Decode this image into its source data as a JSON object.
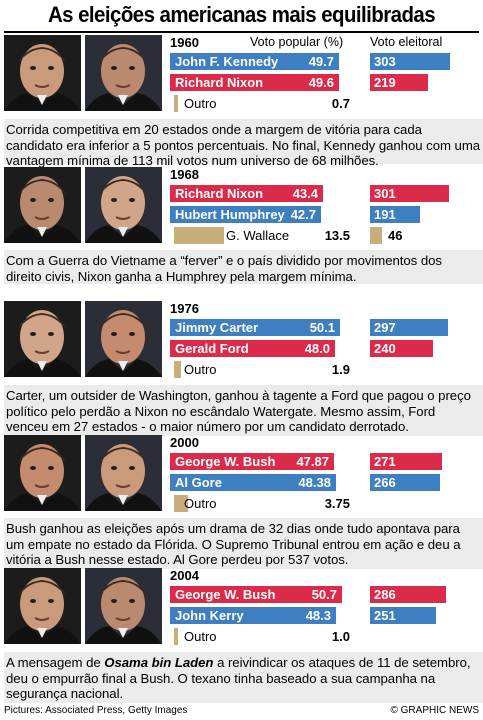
{
  "title": "As eleições americanas mais equilibradas",
  "headers": {
    "popular": "Voto popular (%)",
    "electoral": "Voto eleitoral"
  },
  "colors": {
    "blue": "#3e7fc1",
    "red": "#dc2a4a",
    "tan": "#c8ae7b",
    "text_bg": "#ebebeb"
  },
  "photo_icons": [
    "portrait-icon"
  ],
  "chart_data": [
    {
      "type": "bar",
      "year": "1960",
      "series": [
        {
          "name": "John F. Kennedy",
          "popular": "49.7",
          "electoral": "303",
          "color": "blue"
        },
        {
          "name": "Richard Nixon",
          "popular": "49.6",
          "electoral": "219",
          "color": "red"
        }
      ],
      "other": {
        "name": "Outro",
        "popular": "0.7",
        "electoral": ""
      }
    },
    {
      "type": "bar",
      "year": "1968",
      "series": [
        {
          "name": "Richard Nixon",
          "popular": "43.4",
          "electoral": "301",
          "color": "red"
        },
        {
          "name": "Hubert Humphrey",
          "popular": "42.7",
          "electoral": "191",
          "color": "blue"
        }
      ],
      "other": {
        "name": "G. Wallace",
        "popular": "13.5",
        "electoral": "46"
      }
    },
    {
      "type": "bar",
      "year": "1976",
      "series": [
        {
          "name": "Jimmy Carter",
          "popular": "50.1",
          "electoral": "297",
          "color": "blue"
        },
        {
          "name": "Gerald Ford",
          "popular": "48.0",
          "electoral": "240",
          "color": "red"
        }
      ],
      "other": {
        "name": "Outro",
        "popular": "1.9",
        "electoral": ""
      }
    },
    {
      "type": "bar",
      "year": "2000",
      "series": [
        {
          "name": "George W. Bush",
          "popular": "47.87",
          "electoral": "271",
          "color": "red"
        },
        {
          "name": "Al Gore",
          "popular": "48.38",
          "electoral": "266",
          "color": "blue"
        }
      ],
      "other": {
        "name": "Outro",
        "popular": "3.75",
        "electoral": ""
      }
    },
    {
      "type": "bar",
      "year": "2004",
      "series": [
        {
          "name": "George W. Bush",
          "popular": "50.7",
          "electoral": "286",
          "color": "red"
        },
        {
          "name": "John Kerry",
          "popular": "48.3",
          "electoral": "251",
          "color": "blue"
        }
      ],
      "other": {
        "name": "Outro",
        "popular": "1.0",
        "electoral": ""
      }
    }
  ],
  "texts": [
    "Corrida competitiva em 20 estados onde a margem de vitória para cada candidato era inferior a 5 pontos percentuais. No final, Kennedy ganhou com uma vantagem mínima de 113 mil votos num universo de 68 milhões.",
    "Com a Guerra do Vietname a “ferver” e o país dividido por movimentos dos direito civis, Nixon ganha a Humphrey pela margem mínima.",
    "Carter, um outsider de Washington, ganhou à tagente a Ford que pagou o preço político pelo perdão a Nixon no escândalo Watergate. Mesmo assim, Ford venceu em 27 estados - o maior número por um candidato derrotado.",
    "Bush ganhou as eleições após um drama de 32 dias onde tudo apontava para um empate no estado da Flórida. O Supremo Tribunal entrou em ação e deu a vitória a Bush nesse estado. Al Gore perdeu por 537 votos.",
    {
      "before": "A mensagem de ",
      "highlight": "Osama bin Laden",
      "after": " a reivindicar os ataques de 11 de setembro, deu o empurrão final a Bush. O texano tinha baseado a sua campanha na segurança nacional."
    }
  ],
  "footer": {
    "credits": "Pictures: Associated Press, Getty Images",
    "brand": "© GRAPHIC NEWS"
  }
}
